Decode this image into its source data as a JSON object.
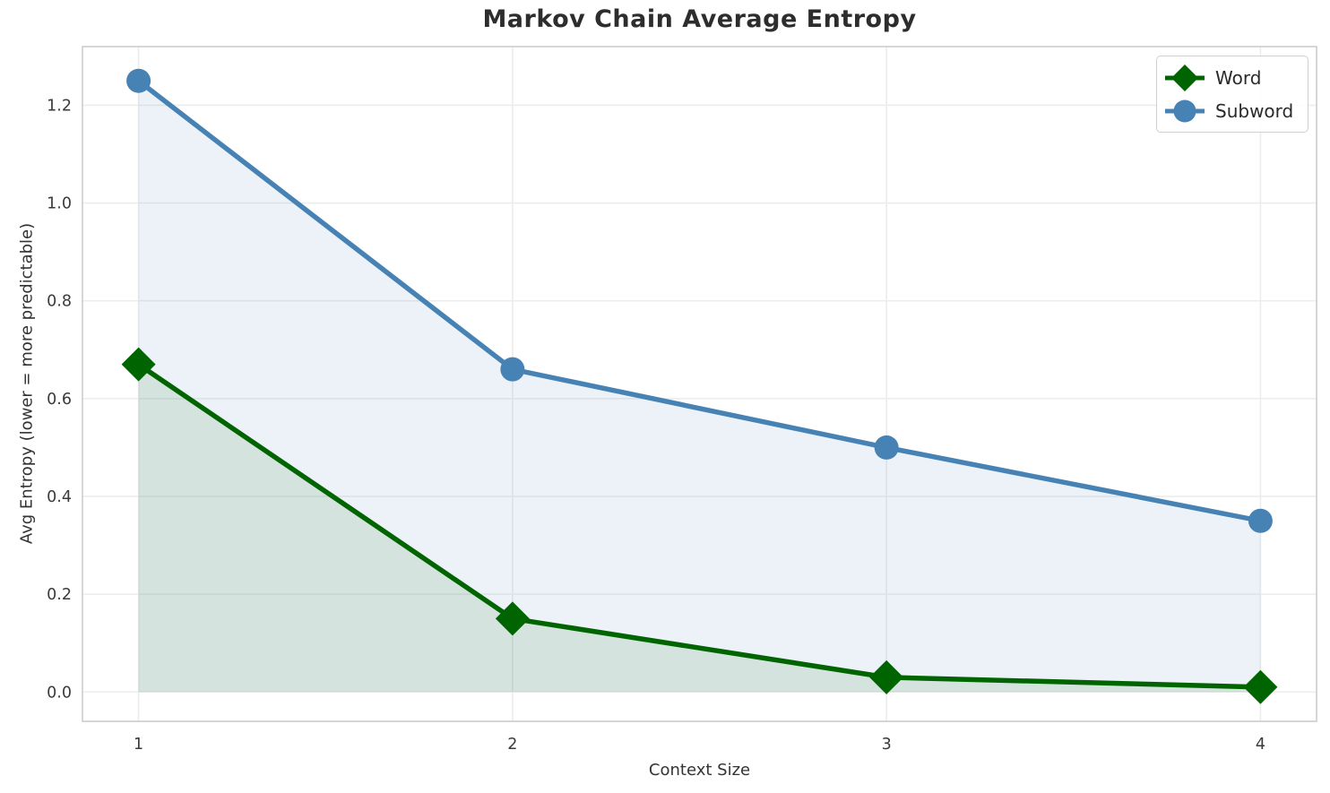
{
  "chart": {
    "title": "Markov Chain Average Entropy",
    "xlabel": "Context Size",
    "ylabel": "Avg Entropy (lower = more predictable)"
  },
  "chart_data": {
    "type": "line",
    "title": "Markov Chain Average Entropy",
    "xlabel": "Context Size",
    "ylabel": "Avg Entropy (lower = more predictable)",
    "x": [
      1,
      2,
      3,
      4
    ],
    "series": [
      {
        "name": "Word",
        "values": [
          0.67,
          0.15,
          0.03,
          0.01
        ],
        "color": "#006400",
        "marker": "diamond",
        "area_fill": true
      },
      {
        "name": "Subword",
        "values": [
          1.25,
          0.66,
          0.5,
          0.35
        ],
        "color": "#4682b4",
        "marker": "circle",
        "area_fill": true
      }
    ],
    "xticks": [
      1,
      2,
      3,
      4
    ],
    "yticks": [
      0.0,
      0.2,
      0.4,
      0.6,
      0.8,
      1.0,
      1.2
    ],
    "xlim": [
      0.85,
      4.15
    ],
    "ylim": [
      -0.06,
      1.32
    ],
    "grid": true,
    "grid_color": "#ececec",
    "spine_color": "#cccccc",
    "tick_color": "#3a3a3a",
    "fill_alpha": 0.1,
    "fill_baseline": 0.0,
    "legend_position": "upper right",
    "legend_labels": [
      "Word",
      "Subword"
    ]
  }
}
